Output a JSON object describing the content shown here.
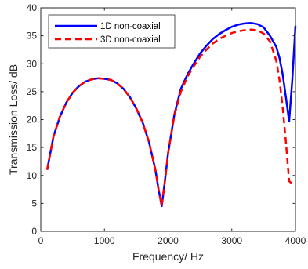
{
  "chart_data": {
    "type": "line",
    "xlabel": "Frequency/ Hz",
    "ylabel": "Transmission Loss/ dB",
    "xlim": [
      0,
      4000
    ],
    "ylim": [
      0,
      40
    ],
    "xticks": [
      0,
      1000,
      2000,
      3000,
      4000
    ],
    "yticks": [
      0,
      5,
      10,
      15,
      20,
      25,
      30,
      35,
      40
    ],
    "grid": false,
    "legend_position": "top-left",
    "series": [
      {
        "name": "1D non-coaxial",
        "color": "#0000ff",
        "style": "solid",
        "x": [
          100,
          200,
          300,
          400,
          500,
          600,
          700,
          800,
          900,
          1000,
          1100,
          1200,
          1300,
          1400,
          1500,
          1600,
          1700,
          1800,
          1850,
          1900,
          1950,
          2000,
          2100,
          2200,
          2300,
          2400,
          2500,
          2600,
          2700,
          2800,
          2900,
          3000,
          3100,
          3200,
          3300,
          3400,
          3500,
          3600,
          3700,
          3750,
          3800,
          3850,
          3900,
          3950,
          4000
        ],
        "y": [
          11,
          17,
          20.5,
          23,
          24.8,
          26,
          26.8,
          27.2,
          27.4,
          27.3,
          27.1,
          26.5,
          25.5,
          24,
          22,
          19.5,
          16,
          11,
          7.5,
          4.5,
          9,
          14,
          21,
          25.5,
          28,
          30,
          31.8,
          33.2,
          34.4,
          35.3,
          36,
          36.6,
          37,
          37.2,
          37.3,
          37.1,
          36.5,
          35,
          33,
          31,
          28,
          24,
          19.7,
          27,
          36.8
        ]
      },
      {
        "name": "3D non-coaxial",
        "color": "#ff0000",
        "style": "dashed",
        "x": [
          100,
          200,
          300,
          400,
          500,
          600,
          700,
          800,
          900,
          1000,
          1100,
          1200,
          1300,
          1400,
          1500,
          1600,
          1700,
          1800,
          1850,
          1900,
          1950,
          2000,
          2100,
          2200,
          2300,
          2400,
          2500,
          2600,
          2700,
          2800,
          2900,
          3000,
          3100,
          3200,
          3300,
          3400,
          3500,
          3600,
          3700,
          3750,
          3800,
          3850,
          3900,
          3950,
          4000
        ],
        "y": [
          11,
          17,
          20.5,
          23,
          24.8,
          26,
          26.8,
          27.2,
          27.4,
          27.3,
          27.1,
          26.5,
          25.5,
          24,
          22,
          19.5,
          16,
          11,
          7.5,
          4.6,
          9,
          14,
          20.8,
          25,
          27.6,
          29.5,
          31.2,
          32.5,
          33.6,
          34.4,
          35,
          35.5,
          35.8,
          36,
          36.1,
          36,
          35.4,
          34,
          30.5,
          27,
          22,
          16,
          9,
          8.5,
          8.5
        ]
      }
    ]
  }
}
